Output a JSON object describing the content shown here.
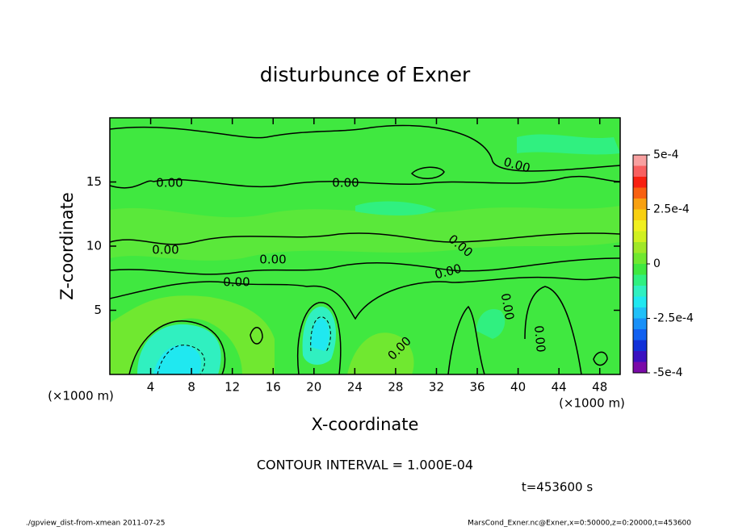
{
  "chart_data": {
    "type": "contour",
    "title": "disturbunce of Exner",
    "xlabel": "X-coordinate",
    "ylabel": "Z-coordinate",
    "x_units": "(×1000 m)",
    "y_units": "(×1000 m)",
    "xlim": [
      0,
      50
    ],
    "ylim": [
      0,
      20
    ],
    "xticks": [
      4,
      8,
      12,
      16,
      20,
      24,
      28,
      32,
      36,
      40,
      44,
      48
    ],
    "yticks": [
      5,
      10,
      15
    ],
    "contour_labels": [
      "0.00",
      "0.00",
      "0.00",
      "0.00",
      "0.00",
      "0.00",
      "0.00",
      "0.00",
      "0.00",
      "0.00",
      "0.00"
    ],
    "contour_interval_text": "CONTOUR INTERVAL = 1.000E-04",
    "time_text": "t=453600 s",
    "footer_left": "./gpview_dist-from-xmean  2011-07-25",
    "footer_right": "MarsCond_Exner.nc@Exner,x=0:50000,z=0:20000,t=453600",
    "colorbar": {
      "bounds": [
        -0.0005,
        -0.00045,
        -0.0004,
        -0.00035,
        -0.0003,
        -0.00025,
        -0.0002,
        -0.00015,
        -0.0001,
        -5e-05,
        0,
        5e-05,
        0.0001,
        0.00015,
        0.0002,
        0.00025,
        0.0003,
        0.00035,
        0.0004,
        0.00045,
        0.0005
      ],
      "colors": [
        "#7a0aa8",
        "#3a10c0",
        "#1030d8",
        "#1060f0",
        "#1890f8",
        "#20c0f8",
        "#20e8f0",
        "#30f0c0",
        "#30f080",
        "#40e840",
        "#70e830",
        "#a0e828",
        "#d0f020",
        "#f0f020",
        "#f8d010",
        "#f8a010",
        "#f86010",
        "#f82010",
        "#f86060",
        "#f8a0a0"
      ],
      "ticks": [
        {
          "value": 0.0005,
          "label": "5e-4"
        },
        {
          "value": 0.00025,
          "label": "2.5e-4"
        },
        0,
        {
          "value": -0.00025,
          "label": "-2.5e-4"
        },
        {
          "value": -0.0005,
          "label": "-5e-4"
        }
      ]
    }
  }
}
